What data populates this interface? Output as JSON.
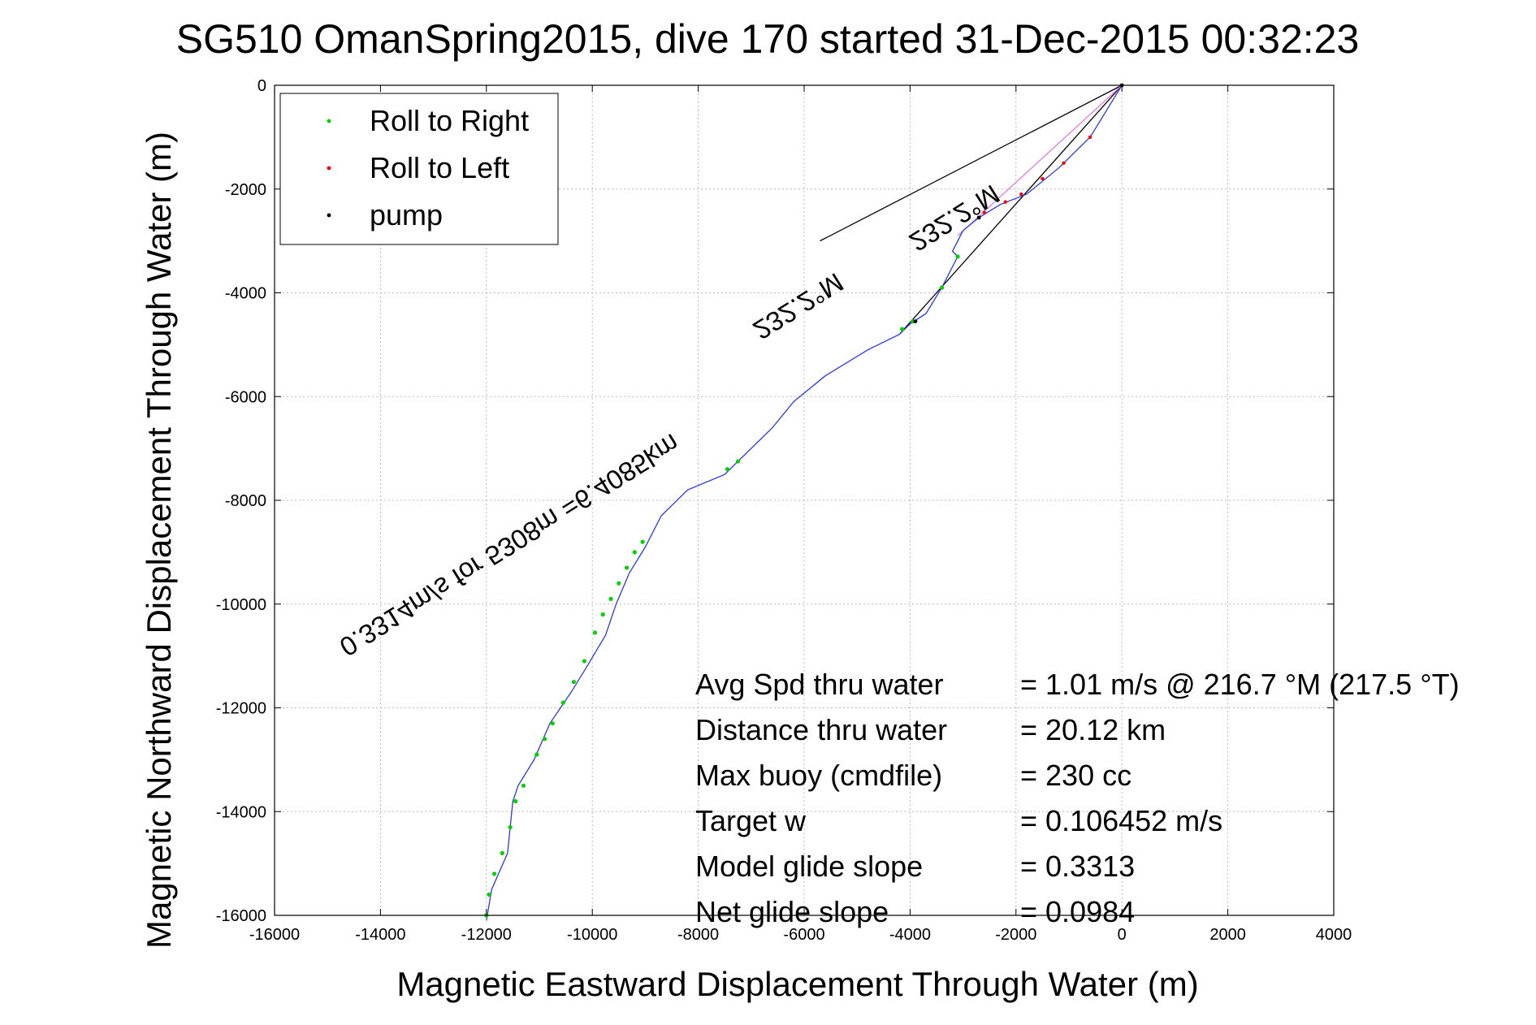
{
  "chart_data": {
    "type": "line",
    "title": "SG510 OmanSpring2015, dive 170 started 31-Dec-2015 00:32:23",
    "xlabel": "Magnetic Eastward Displacement Through Water (m)",
    "ylabel": "Magnetic Northward Displacement Through Water (m)",
    "xlim": [
      -16000,
      4000
    ],
    "ylim": [
      -16000,
      0
    ],
    "xticks": [
      -16000,
      -14000,
      -12000,
      -10000,
      -8000,
      -6000,
      -4000,
      -2000,
      0,
      2000,
      4000
    ],
    "yticks": [
      0,
      -2000,
      -4000,
      -6000,
      -8000,
      -10000,
      -12000,
      -14000,
      -16000
    ],
    "grid": true,
    "legend_position": "top-left",
    "legend": [
      {
        "label": "Roll to Right",
        "color": "#00d000"
      },
      {
        "label": "Roll to Left",
        "color": "#ff0000"
      },
      {
        "label": "pump",
        "color": "#000000"
      }
    ],
    "track": {
      "color": "#2b3bd6",
      "x": [
        0,
        -600,
        -1200,
        -1800,
        -2300,
        -2700,
        -3000,
        -3200,
        -3100,
        -3400,
        -3700,
        -4000,
        -4200,
        -4800,
        -5600,
        -6200,
        -6600,
        -7100,
        -7500,
        -8200,
        -8700,
        -9000,
        -9300,
        -9550,
        -9750,
        -10100,
        -10400,
        -10800,
        -11100,
        -11400,
        -11500,
        -11550,
        -11600,
        -11900,
        -12000
      ],
      "y": [
        0,
        -1000,
        -1600,
        -2100,
        -2300,
        -2550,
        -2800,
        -3200,
        -3300,
        -3900,
        -4400,
        -4600,
        -4800,
        -5100,
        -5600,
        -6100,
        -6600,
        -7100,
        -7500,
        -7800,
        -8300,
        -8900,
        -9400,
        -10000,
        -10600,
        -11200,
        -11700,
        -12300,
        -13000,
        -13500,
        -13800,
        -14300,
        -14800,
        -15500,
        -16100
      ]
    },
    "roll_right": {
      "color": "#00d000",
      "x": [
        -3100,
        -3400,
        -3950,
        -4150,
        -7250,
        -7450,
        -9050,
        -9200,
        -9350,
        -9500,
        -9650,
        -9800,
        -9950,
        -10150,
        -10350,
        -10550,
        -10750,
        -10900,
        -11050,
        -11300,
        -11450,
        -11550,
        -11700,
        -11850,
        -11950,
        -12000
      ],
      "y": [
        -3300,
        -3900,
        -4550,
        -4700,
        -7250,
        -7400,
        -8800,
        -9000,
        -9300,
        -9600,
        -9900,
        -10200,
        -10550,
        -11100,
        -11500,
        -11900,
        -12300,
        -12600,
        -12900,
        -13500,
        -13800,
        -14300,
        -14800,
        -15200,
        -15600,
        -16000
      ]
    },
    "roll_left": {
      "color": "#ff0000",
      "x": [
        -600,
        -1100,
        -1500,
        -1900,
        -2200,
        -2600
      ],
      "y": [
        -1000,
        -1500,
        -1800,
        -2100,
        -2250,
        -2450
      ]
    },
    "pump": {
      "color": "#000000",
      "x": [
        0,
        -2700,
        -3900
      ],
      "y": [
        0,
        -2550,
        -4550
      ]
    },
    "bearing_lines": [
      {
        "x": [
          0,
          -5700
        ],
        "y": [
          0,
          -3000
        ],
        "color": "#000000"
      },
      {
        "x": [
          0,
          -4200
        ],
        "y": [
          0,
          -4800
        ],
        "color": "#000000"
      },
      {
        "x": [
          0,
          -3100
        ],
        "y": [
          0,
          -2900
        ],
        "color": "#e07be0"
      }
    ],
    "annotations": [
      {
        "text": "0.3314m/s for 5308m =6.4085km",
        "x": -8500,
        "y": -6700,
        "angle": -32
      },
      {
        "text": "232.2°M",
        "x": -5400,
        "y": -3600,
        "angle": -32
      },
      {
        "text": "232.2°M",
        "x": -2450,
        "y": -1900,
        "angle": -32
      }
    ],
    "stats": [
      {
        "label": "Avg Spd thru water",
        "value": "=  1.01 m/s @ 216.7 °M (217.5 °T)"
      },
      {
        "label": "Distance thru water",
        "value": "= 20.12 km"
      },
      {
        "label": "Max buoy (cmdfile)",
        "value": "= 230 cc"
      },
      {
        "label": "Target w",
        "value": "= 0.106452 m/s"
      },
      {
        "label": "Model glide slope",
        "value": "= 0.3313"
      },
      {
        "label": "Net glide slope",
        "value": "= 0.0984"
      }
    ]
  }
}
